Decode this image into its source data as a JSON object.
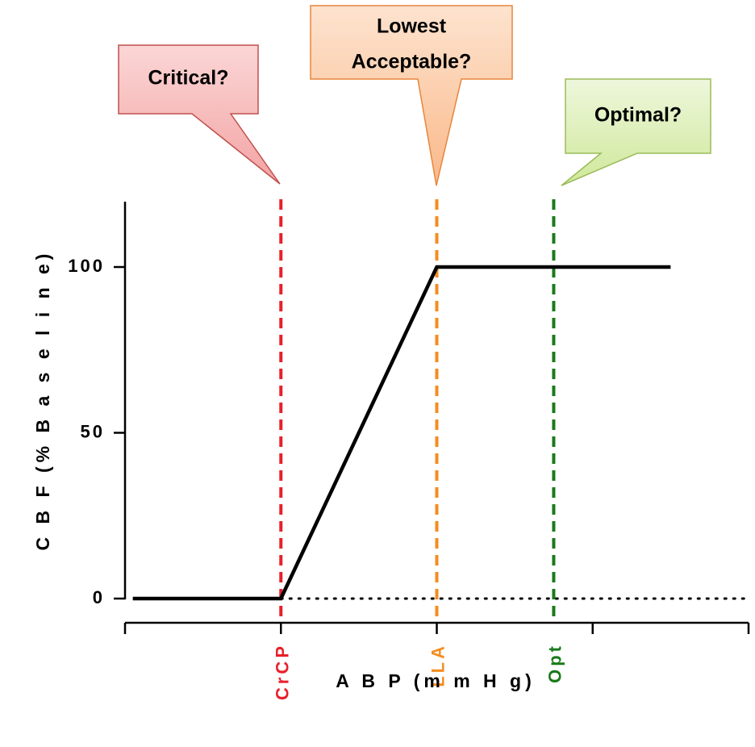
{
  "chart_data": {
    "type": "line",
    "xlabel": "A B P  (m m H g)",
    "ylabel": "C B F  (%  B a s e l i n e)",
    "ylim": [
      -7,
      120
    ],
    "yticks": [
      0,
      50,
      100
    ],
    "ytick_labels": [
      "0",
      "50",
      "100"
    ],
    "xlim": [
      0,
      4
    ],
    "xticks": [
      0,
      1,
      2,
      3,
      4
    ],
    "series": [
      {
        "points": [
          [
            0.05,
            0
          ],
          [
            1.0,
            0
          ],
          [
            2.0,
            100
          ],
          [
            3.5,
            100
          ]
        ],
        "color": "#000000",
        "style": "solid"
      }
    ],
    "baseline": {
      "y": 0,
      "style": "dotted",
      "color": "#000000"
    },
    "markers": [
      {
        "label": "CrCP",
        "x": 1.0,
        "color": "#e8202a"
      },
      {
        "label": "LLA",
        "x": 2.0,
        "color": "#f48d20"
      },
      {
        "label": "Opt",
        "x": 2.75,
        "color": "#1a7a1a"
      }
    ],
    "callouts": [
      {
        "lines": [
          "Critical?"
        ],
        "fill_top": "#fbd6d6",
        "fill_bottom": "#f3a3a3",
        "stroke": "#c0504d",
        "target": "CrCP"
      },
      {
        "lines": [
          "Lowest",
          "Acceptable?"
        ],
        "fill_top": "#fde3cf",
        "fill_bottom": "#fab98a",
        "stroke": "#e8853d",
        "target": "LLA"
      },
      {
        "lines": [
          "Optimal?"
        ],
        "fill_top": "#eef7dc",
        "fill_bottom": "#cfe89a",
        "stroke": "#9bbb59",
        "target": "Opt"
      }
    ]
  }
}
